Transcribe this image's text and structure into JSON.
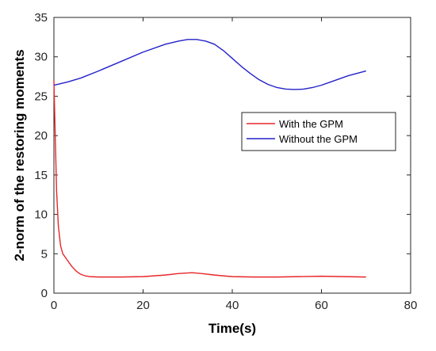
{
  "chart_data": {
    "type": "line",
    "title": "",
    "xlabel": "Time(s)",
    "ylabel": "2-norm of the restoring moments",
    "xlim": [
      0,
      80
    ],
    "ylim": [
      0,
      35
    ],
    "xticks": [
      0,
      20,
      40,
      60,
      80
    ],
    "yticks": [
      0,
      5,
      10,
      15,
      20,
      25,
      30,
      35
    ],
    "grid": false,
    "legend_position": "right",
    "series": [
      {
        "name": "With the GPM",
        "color": "#e8262a",
        "x": [
          0,
          0.3,
          0.6,
          1,
          1.5,
          2,
          3,
          4,
          5,
          6,
          7,
          8,
          10,
          15,
          20,
          25,
          28,
          31,
          33,
          36,
          40,
          45,
          50,
          55,
          60,
          65,
          70
        ],
        "y": [
          27,
          20,
          13,
          8.5,
          6,
          5,
          4.2,
          3.4,
          2.8,
          2.4,
          2.2,
          2.1,
          2.05,
          2.05,
          2.1,
          2.3,
          2.5,
          2.6,
          2.5,
          2.3,
          2.1,
          2.05,
          2.05,
          2.1,
          2.15,
          2.1,
          2.05
        ]
      },
      {
        "name": "Without the GPM",
        "color": "#2321c9",
        "x": [
          0,
          3,
          6,
          10,
          15,
          20,
          25,
          28,
          30,
          32,
          34,
          36,
          38,
          40,
          42,
          44,
          46,
          48,
          50,
          52,
          54,
          56,
          58,
          60,
          62,
          64,
          66,
          68,
          70
        ],
        "y": [
          26.4,
          26.8,
          27.3,
          28.2,
          29.4,
          30.6,
          31.6,
          32.0,
          32.2,
          32.2,
          32.0,
          31.6,
          30.8,
          29.8,
          28.8,
          27.9,
          27.1,
          26.5,
          26.1,
          25.9,
          25.85,
          25.9,
          26.1,
          26.4,
          26.8,
          27.2,
          27.6,
          27.9,
          28.2
        ]
      }
    ]
  }
}
